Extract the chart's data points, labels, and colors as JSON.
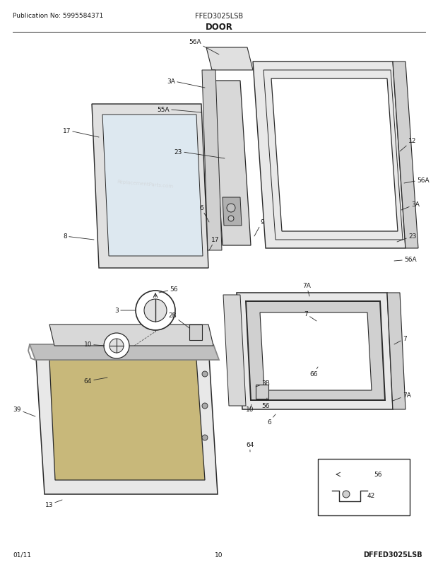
{
  "title": "DOOR",
  "pub_no": "Publication No: 5995584371",
  "model": "FFED3025LSB",
  "diagram_id": "DFFED3025LSB",
  "date": "01/11",
  "page": "10",
  "bg_color": "#ffffff",
  "line_color": "#2a2a2a",
  "text_color": "#1a1a1a",
  "figsize": [
    6.2,
    8.03
  ],
  "dpi": 100
}
